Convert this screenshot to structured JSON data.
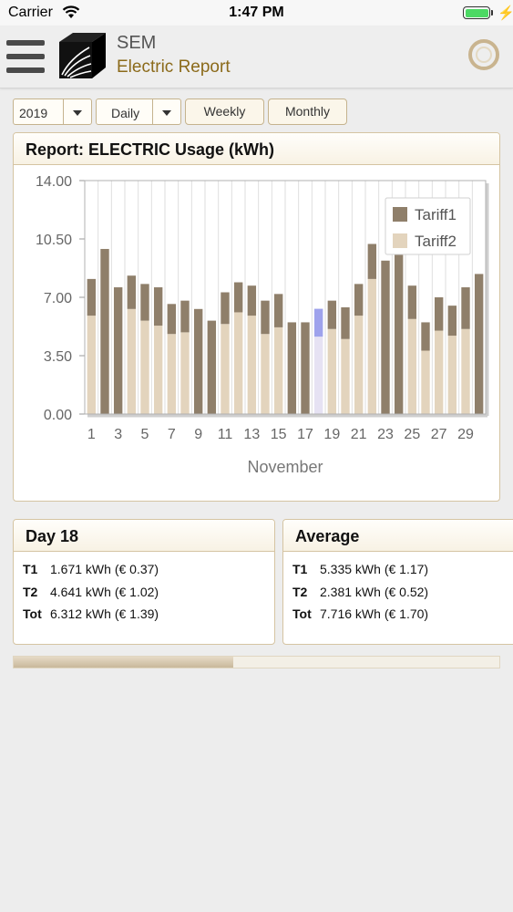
{
  "status_bar": {
    "carrier": "Carrier",
    "time": "1:47 PM",
    "battery_level": 1.0
  },
  "header": {
    "title": "SEM",
    "subtitle": "Electric Report"
  },
  "controls": {
    "year_select": "2019",
    "period_select": "Daily",
    "weekly_button": "Weekly",
    "monthly_button": "Monthly"
  },
  "report": {
    "title": "Report: ELECTRIC Usage (kWh)"
  },
  "chart_data": {
    "type": "bar",
    "stacked": true,
    "xlabel": "November",
    "ylabel": "",
    "ylim": [
      0,
      14
    ],
    "yticks": [
      "14.00",
      "10.50",
      "7.00",
      "3.50",
      "0.00"
    ],
    "xticks": [
      "1",
      "3",
      "5",
      "7",
      "9",
      "11",
      "13",
      "15",
      "17",
      "19",
      "21",
      "23",
      "25",
      "27",
      "29"
    ],
    "categories": [
      "1",
      "2",
      "3",
      "4",
      "5",
      "6",
      "7",
      "8",
      "9",
      "10",
      "11",
      "12",
      "13",
      "14",
      "15",
      "16",
      "17",
      "18",
      "19",
      "20",
      "21",
      "22",
      "23",
      "24",
      "25",
      "26",
      "27",
      "28",
      "29",
      "30"
    ],
    "series": [
      {
        "name": "Tariff2",
        "color": "#e3d4bd",
        "values": [
          5.9,
          0,
          0,
          6.3,
          5.6,
          5.3,
          4.8,
          4.9,
          0,
          0,
          5.4,
          6.1,
          5.9,
          4.8,
          5.2,
          0,
          0,
          4.641,
          5.1,
          4.5,
          5.9,
          8.1,
          0,
          0,
          5.7,
          3.8,
          5.0,
          4.7,
          5.1,
          0
        ],
        "highlight_color": "#e6e2f3"
      },
      {
        "name": "Tariff1",
        "color": "#8f7f6a",
        "values": [
          2.2,
          9.9,
          7.6,
          2.0,
          2.2,
          2.3,
          1.8,
          1.9,
          6.3,
          5.6,
          1.9,
          1.8,
          1.8,
          2.0,
          2.0,
          5.5,
          5.5,
          1.671,
          1.7,
          1.9,
          1.9,
          2.1,
          9.2,
          10.3,
          2.0,
          1.7,
          2.0,
          1.8,
          2.5,
          8.4
        ],
        "highlight_color": "#9ea2ec"
      }
    ],
    "highlight_index": 17,
    "legend_position": "top-right",
    "grid": true
  },
  "day_panel": {
    "title": "Day 18",
    "rows": [
      {
        "label": "T1",
        "value": "1.671 kWh (€ 0.37)"
      },
      {
        "label": "T2",
        "value": "4.641 kWh (€ 1.02)"
      },
      {
        "label": "Tot",
        "value": "6.312 kWh (€ 1.39)"
      }
    ]
  },
  "average_panel": {
    "title": "Average",
    "rows": [
      {
        "label": "T1",
        "value": "5.335 kWh (€ 1.17)"
      },
      {
        "label": "T2",
        "value": "2.381 kWh (€ 0.52)"
      },
      {
        "label": "Tot",
        "value": "7.716 kWh (€ 1.70)"
      }
    ]
  }
}
